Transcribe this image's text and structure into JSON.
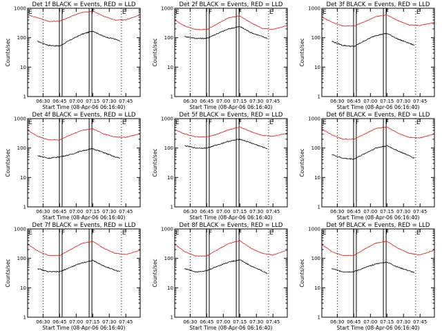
{
  "colors": {
    "events": "#000000",
    "lld": "#e8140c"
  },
  "chart_data": [
    {
      "type": "line",
      "title": "Det 1f BLACK = Events, RED = LLD",
      "xlabel": "Start Time (08-Apr-06 06:16:40)",
      "ylabel": "Counts/sec",
      "xlim": [
        "06:16",
        "07:58"
      ],
      "ylim": [
        1,
        1000
      ],
      "yscale": "log",
      "xticks": [
        "06:30",
        "06:45",
        "07:00",
        "07:15",
        "07:30",
        "07:45"
      ],
      "yticks": [
        "1",
        "10",
        "100",
        "1000"
      ],
      "flags": [
        {
          "label": "E",
          "t": "06:16"
        },
        {
          "label": "F",
          "t": "06:46"
        },
        {
          "label": "F",
          "t": "07:13"
        },
        {
          "label": "E",
          "t": "07:41"
        }
      ],
      "series": [
        {
          "name": "Events",
          "color": "#000000",
          "t": [
            "06:25",
            "06:35",
            "06:45",
            "06:55",
            "07:05",
            "07:15",
            "07:25",
            "07:35",
            "07:40"
          ],
          "values": [
            75,
            55,
            52,
            85,
            130,
            170,
            110,
            90,
            75
          ]
        },
        {
          "name": "LLD",
          "color": "#e8140c",
          "t": [
            "06:16",
            "06:25",
            "06:35",
            "06:45",
            "06:55",
            "07:05",
            "07:15",
            "07:25",
            "07:35",
            "07:45",
            "07:58"
          ],
          "values": [
            600,
            480,
            360,
            360,
            520,
            720,
            800,
            540,
            400,
            400,
            600
          ]
        }
      ]
    },
    {
      "type": "line",
      "title": "Det 2f BLACK = Events, RED = LLD",
      "xlabel": "Start Time (08-Apr-06 06:16:40)",
      "ylabel": "Counts/sec",
      "xlim": [
        "06:16",
        "07:58"
      ],
      "ylim": [
        1,
        1000
      ],
      "yscale": "log",
      "xticks": [
        "06:30",
        "06:45",
        "07:00",
        "07:15",
        "07:30",
        "07:45"
      ],
      "yticks": [
        "1",
        "10",
        "100",
        "1000"
      ],
      "flags": [
        {
          "label": "E",
          "t": "06:16"
        },
        {
          "label": "F",
          "t": "06:46"
        },
        {
          "label": "F",
          "t": "07:13"
        },
        {
          "label": "E",
          "t": "07:41"
        }
      ],
      "series": [
        {
          "name": "Events",
          "color": "#000000",
          "t": [
            "06:25",
            "06:35",
            "06:45",
            "06:55",
            "07:05",
            "07:15",
            "07:25",
            "07:35",
            "07:40"
          ],
          "values": [
            110,
            95,
            95,
            140,
            200,
            240,
            150,
            110,
            95
          ]
        },
        {
          "name": "LLD",
          "color": "#e8140c",
          "t": [
            "06:16",
            "06:25",
            "06:35",
            "06:45",
            "06:55",
            "07:05",
            "07:15",
            "07:25",
            "07:35",
            "07:45",
            "07:58"
          ],
          "values": [
            400,
            250,
            190,
            190,
            300,
            480,
            550,
            320,
            210,
            190,
            260
          ]
        }
      ]
    },
    {
      "type": "line",
      "title": "Det 3f BLACK = Events, RED = LLD",
      "xlabel": "Start Time (08-Apr-06 06:16:40)",
      "ylabel": "Counts/sec",
      "xlim": [
        "06:16",
        "07:58"
      ],
      "ylim": [
        1,
        1000
      ],
      "yscale": "log",
      "xticks": [
        "06:30",
        "06:45",
        "07:00",
        "07:15",
        "07:30",
        "07:45"
      ],
      "yticks": [
        "1",
        "10",
        "100",
        "1000"
      ],
      "flags": [
        {
          "label": "E",
          "t": "06:16"
        },
        {
          "label": "F",
          "t": "06:46"
        },
        {
          "label": "F",
          "t": "07:13"
        },
        {
          "label": "E",
          "t": "07:41"
        }
      ],
      "series": [
        {
          "name": "Events",
          "color": "#000000",
          "t": [
            "06:25",
            "06:35",
            "06:45",
            "06:55",
            "07:05",
            "07:15",
            "07:25",
            "07:35",
            "07:40"
          ],
          "values": [
            75,
            55,
            50,
            80,
            120,
            140,
            90,
            65,
            55
          ]
        },
        {
          "name": "LLD",
          "color": "#e8140c",
          "t": [
            "06:16",
            "06:25",
            "06:35",
            "06:45",
            "06:55",
            "07:05",
            "07:15",
            "07:25",
            "07:35",
            "07:45",
            "07:58"
          ],
          "values": [
            500,
            340,
            250,
            250,
            350,
            520,
            600,
            380,
            270,
            260,
            330
          ]
        }
      ]
    },
    {
      "type": "line",
      "title": "Det 4f BLACK = Events, RED = LLD",
      "xlabel": "Start Time (08-Apr-06 06:16:40)",
      "ylabel": "Counts/sec",
      "xlim": [
        "06:16",
        "07:58"
      ],
      "ylim": [
        1,
        1000
      ],
      "yscale": "log",
      "xticks": [
        "06:30",
        "06:45",
        "07:00",
        "07:15",
        "07:30",
        "07:45"
      ],
      "yticks": [
        "1",
        "10",
        "100",
        "1000"
      ],
      "flags": [
        {
          "label": "E",
          "t": "06:16"
        },
        {
          "label": "F",
          "t": "06:46"
        },
        {
          "label": "F",
          "t": "07:13"
        },
        {
          "label": "E",
          "t": "07:41"
        }
      ],
      "series": [
        {
          "name": "Events",
          "color": "#000000",
          "t": [
            "06:25",
            "06:35",
            "06:45",
            "06:55",
            "07:05",
            "07:15",
            "07:25",
            "07:35",
            "07:40"
          ],
          "values": [
            55,
            45,
            50,
            60,
            80,
            95,
            70,
            50,
            45
          ]
        },
        {
          "name": "LLD",
          "color": "#e8140c",
          "t": [
            "06:16",
            "06:25",
            "06:35",
            "06:45",
            "06:55",
            "07:05",
            "07:15",
            "07:25",
            "07:35",
            "07:45",
            "07:58"
          ],
          "values": [
            400,
            250,
            190,
            190,
            280,
            400,
            450,
            300,
            240,
            230,
            310
          ]
        }
      ]
    },
    {
      "type": "line",
      "title": "Det 5f BLACK = Events, RED = LLD",
      "xlabel": "Start Time (08-Apr-06 06:16:40)",
      "ylabel": "Counts/sec",
      "xlim": [
        "06:16",
        "07:58"
      ],
      "ylim": [
        1,
        1000
      ],
      "yscale": "log",
      "xticks": [
        "06:30",
        "06:45",
        "07:00",
        "07:15",
        "07:30",
        "07:45"
      ],
      "yticks": [
        "1",
        "10",
        "100",
        "1000"
      ],
      "flags": [
        {
          "label": "E",
          "t": "06:16"
        },
        {
          "label": "F",
          "t": "06:46"
        },
        {
          "label": "F",
          "t": "07:13"
        },
        {
          "label": "E",
          "t": "07:41"
        }
      ],
      "series": [
        {
          "name": "Events",
          "color": "#000000",
          "t": [
            "06:25",
            "06:35",
            "06:45",
            "06:55",
            "07:05",
            "07:15",
            "07:25",
            "07:35",
            "07:40"
          ],
          "values": [
            120,
            100,
            100,
            130,
            170,
            200,
            150,
            110,
            95
          ]
        },
        {
          "name": "LLD",
          "color": "#e8140c",
          "t": [
            "06:16",
            "06:25",
            "06:35",
            "06:45",
            "06:55",
            "07:05",
            "07:15",
            "07:25",
            "07:35",
            "07:45",
            "07:58"
          ],
          "values": [
            420,
            300,
            240,
            240,
            300,
            420,
            520,
            360,
            270,
            250,
            320
          ]
        }
      ]
    },
    {
      "type": "line",
      "title": "Det 6f BLACK = Events, RED = LLD",
      "xlabel": "Start Time (08-Apr-06 06:16:40)",
      "ylabel": "Counts/sec",
      "xlim": [
        "06:16",
        "07:58"
      ],
      "ylim": [
        1,
        1000
      ],
      "yscale": "log",
      "xticks": [
        "06:30",
        "06:45",
        "07:00",
        "07:15",
        "07:30",
        "07:45"
      ],
      "yticks": [
        "1",
        "10",
        "100",
        "1000"
      ],
      "flags": [
        {
          "label": "E",
          "t": "06:16"
        },
        {
          "label": "F",
          "t": "06:46"
        },
        {
          "label": "F",
          "t": "07:13"
        },
        {
          "label": "E",
          "t": "07:41"
        }
      ],
      "series": [
        {
          "name": "Events",
          "color": "#000000",
          "t": [
            "06:25",
            "06:35",
            "06:45",
            "06:55",
            "07:05",
            "07:15",
            "07:25",
            "07:35",
            "07:40"
          ],
          "values": [
            60,
            45,
            42,
            65,
            100,
            120,
            80,
            55,
            45
          ]
        },
        {
          "name": "LLD",
          "color": "#e8140c",
          "t": [
            "06:16",
            "06:25",
            "06:35",
            "06:45",
            "06:55",
            "07:05",
            "07:15",
            "07:25",
            "07:35",
            "07:45",
            "07:58"
          ],
          "values": [
            450,
            280,
            200,
            200,
            300,
            460,
            520,
            320,
            230,
            220,
            300
          ]
        }
      ]
    },
    {
      "type": "line",
      "title": "Det 7f BLACK = Events, RED = LLD",
      "xlabel": "Start Time (08-Apr-06 06:16:40)",
      "ylabel": "Counts/sec",
      "xlim": [
        "06:16",
        "07:58"
      ],
      "ylim": [
        1,
        1000
      ],
      "yscale": "log",
      "xticks": [
        "06:30",
        "06:45",
        "07:00",
        "07:15",
        "07:30",
        "07:45"
      ],
      "yticks": [
        "1",
        "10",
        "100",
        "1000"
      ],
      "flags": [
        {
          "label": "E",
          "t": "06:16"
        },
        {
          "label": "F",
          "t": "06:46"
        },
        {
          "label": "F",
          "t": "07:13"
        },
        {
          "label": "E",
          "t": "07:41"
        }
      ],
      "series": [
        {
          "name": "Events",
          "color": "#000000",
          "t": [
            "06:25",
            "06:35",
            "06:45",
            "06:55",
            "07:05",
            "07:15",
            "07:25",
            "07:35",
            "07:40"
          ],
          "values": [
            45,
            35,
            35,
            50,
            70,
            85,
            55,
            40,
            35
          ]
        },
        {
          "name": "LLD",
          "color": "#e8140c",
          "t": [
            "06:16",
            "06:25",
            "06:35",
            "06:45",
            "06:55",
            "07:05",
            "07:15",
            "07:25",
            "07:35",
            "07:45",
            "07:58"
          ],
          "values": [
            300,
            180,
            125,
            125,
            200,
            320,
            380,
            220,
            150,
            135,
            190
          ]
        }
      ]
    },
    {
      "type": "line",
      "title": "Det 8f BLACK = Events, RED = LLD",
      "xlabel": "Start Time (08-Apr-06 06:16:40)",
      "ylabel": "Counts/sec",
      "xlim": [
        "06:16",
        "07:58"
      ],
      "ylim": [
        1,
        1000
      ],
      "yscale": "log",
      "xticks": [
        "06:30",
        "06:45",
        "07:00",
        "07:15",
        "07:30",
        "07:45"
      ],
      "yticks": [
        "1",
        "10",
        "100",
        "1000"
      ],
      "flags": [
        {
          "label": "E",
          "t": "06:16"
        },
        {
          "label": "F",
          "t": "06:46"
        },
        {
          "label": "F",
          "t": "07:13"
        },
        {
          "label": "E",
          "t": "07:41"
        }
      ],
      "series": [
        {
          "name": "Events",
          "color": "#000000",
          "t": [
            "06:25",
            "06:35",
            "06:45",
            "06:55",
            "07:05",
            "07:15",
            "07:25",
            "07:35",
            "07:40"
          ],
          "values": [
            45,
            35,
            38,
            55,
            75,
            90,
            55,
            38,
            30
          ]
        },
        {
          "name": "LLD",
          "color": "#e8140c",
          "t": [
            "06:16",
            "06:25",
            "06:35",
            "06:45",
            "06:55",
            "07:05",
            "07:15",
            "07:25",
            "07:35",
            "07:45",
            "07:58"
          ],
          "values": [
            300,
            170,
            120,
            120,
            200,
            320,
            400,
            220,
            150,
            130,
            190
          ]
        }
      ]
    },
    {
      "type": "line",
      "title": "Det 9f BLACK = Events, RED = LLD",
      "xlabel": "Start Time (08-Apr-06 06:16:40)",
      "ylabel": "Counts/sec",
      "xlim": [
        "06:16",
        "07:58"
      ],
      "ylim": [
        1,
        1000
      ],
      "yscale": "log",
      "xticks": [
        "06:30",
        "06:45",
        "07:00",
        "07:15",
        "07:30",
        "07:45"
      ],
      "yticks": [
        "1",
        "10",
        "100",
        "1000"
      ],
      "flags": [
        {
          "label": "E",
          "t": "06:16"
        },
        {
          "label": "F",
          "t": "06:46"
        },
        {
          "label": "F",
          "t": "07:13"
        },
        {
          "label": "E",
          "t": "07:41"
        }
      ],
      "series": [
        {
          "name": "Events",
          "color": "#000000",
          "t": [
            "06:25",
            "06:35",
            "06:45",
            "06:55",
            "07:05",
            "07:15",
            "07:25",
            "07:35",
            "07:40"
          ],
          "values": [
            45,
            35,
            35,
            48,
            65,
            75,
            50,
            38,
            32
          ]
        },
        {
          "name": "LLD",
          "color": "#e8140c",
          "t": [
            "06:16",
            "06:25",
            "06:35",
            "06:45",
            "06:55",
            "07:05",
            "07:15",
            "07:25",
            "07:35",
            "07:45",
            "07:58"
          ],
          "values": [
            300,
            170,
            125,
            125,
            210,
            330,
            380,
            220,
            150,
            130,
            190
          ]
        }
      ]
    }
  ]
}
